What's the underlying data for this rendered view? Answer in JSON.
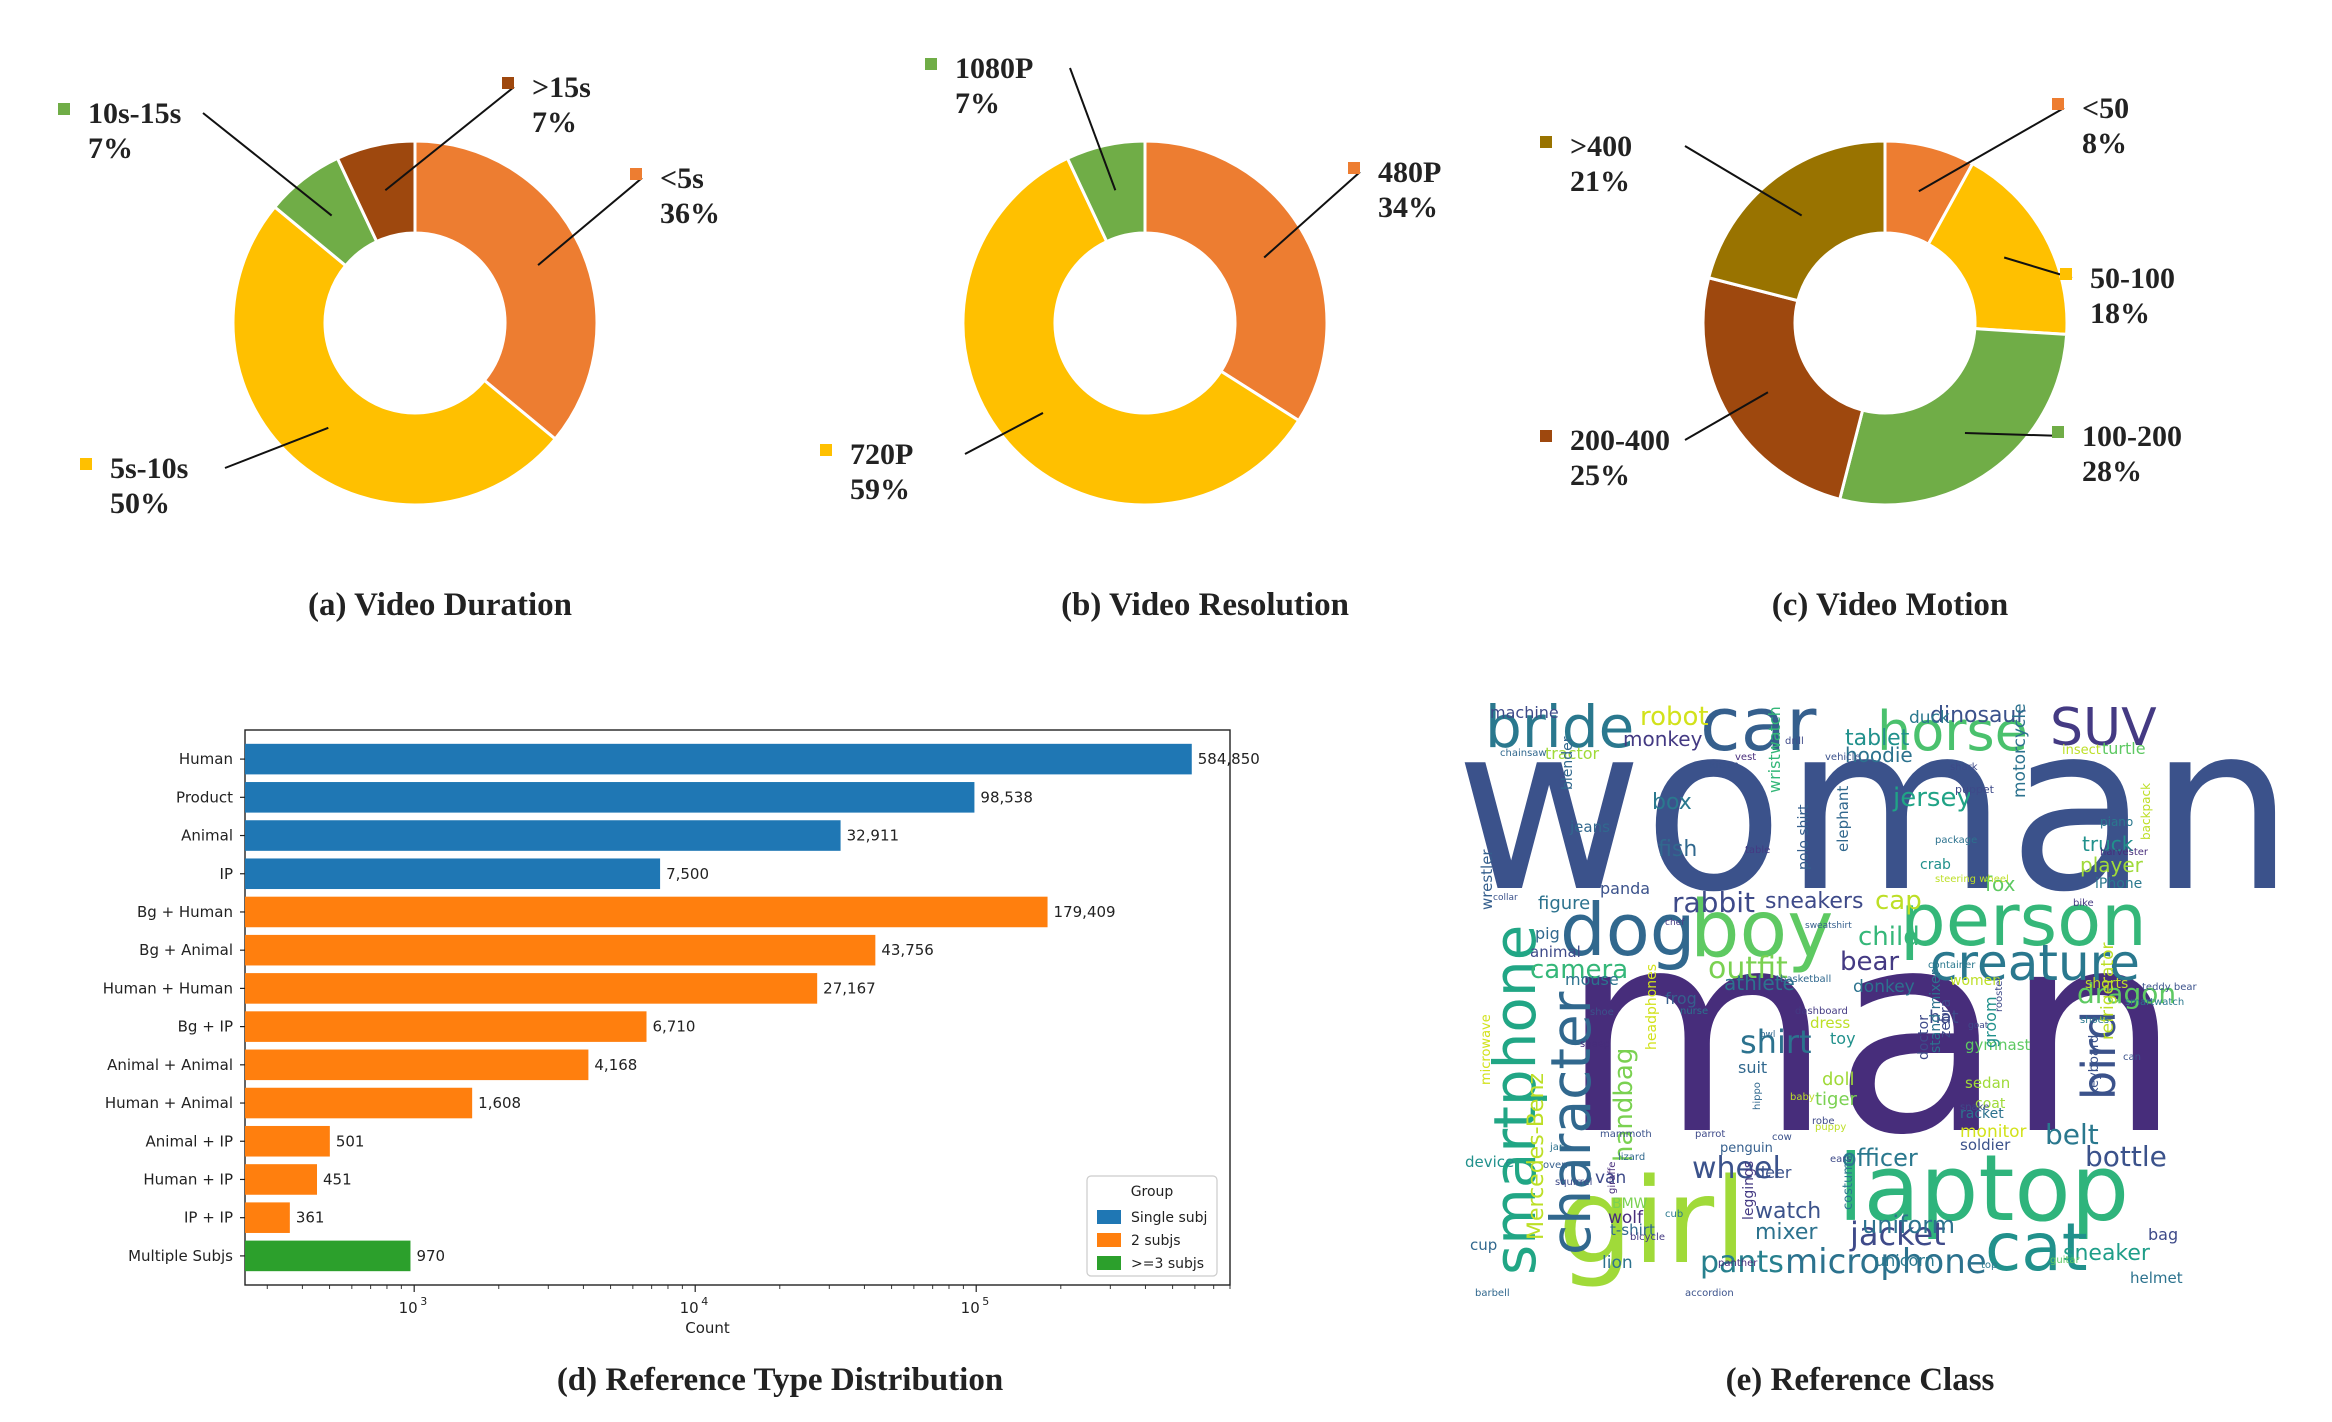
{
  "chart_data": [
    {
      "type": "pie",
      "title": "(a) Video Duration",
      "slices": [
        {
          "label": "<5s",
          "pct_label": "36%",
          "value": 36,
          "color": "#ED7D31"
        },
        {
          "label": "5s-10s",
          "pct_label": "50%",
          "value": 50,
          "color": "#FFC000"
        },
        {
          "label": "10s-15s",
          "pct_label": "7%",
          "value": 7,
          "color": "#70AD47"
        },
        {
          "label": ">15s",
          "pct_label": "7%",
          "value": 7,
          "color": "#9E480E"
        }
      ]
    },
    {
      "type": "pie",
      "title": "(b) Video Resolution",
      "slices": [
        {
          "label": "480P",
          "pct_label": "34%",
          "value": 34,
          "color": "#ED7D31"
        },
        {
          "label": "720P",
          "pct_label": "59%",
          "value": 59,
          "color": "#FFC000"
        },
        {
          "label": "1080P",
          "pct_label": "7%",
          "value": 7,
          "color": "#70AD47"
        }
      ]
    },
    {
      "type": "pie",
      "title": "(c) Video Motion",
      "slices": [
        {
          "label": "<50",
          "pct_label": "8%",
          "value": 8,
          "color": "#ED7D31"
        },
        {
          "label": "50-100",
          "pct_label": "18%",
          "value": 18,
          "color": "#FFC000"
        },
        {
          "label": "100-200",
          "pct_label": "28%",
          "value": 28,
          "color": "#70AD47"
        },
        {
          "label": "200-400",
          "pct_label": "25%",
          "value": 25,
          "color": "#9E480E"
        },
        {
          "label": ">400",
          "pct_label": "21%",
          "value": 21,
          "color": "#997300"
        }
      ]
    },
    {
      "type": "bar",
      "orientation": "horizontal",
      "title": "(d) Reference Type Distribution",
      "xlabel": "Count",
      "xscale": "log",
      "xlim": [
        250,
        800000
      ],
      "xticks": [
        {
          "value": 1000,
          "base": "10",
          "exp": "3"
        },
        {
          "value": 10000,
          "base": "10",
          "exp": "4"
        },
        {
          "value": 100000,
          "base": "10",
          "exp": "5"
        }
      ],
      "categories": [
        "Human",
        "Product",
        "Animal",
        "IP",
        "Bg + Human",
        "Bg + Animal",
        "Human + Human",
        "Bg + IP",
        "Animal + Animal",
        "Human + Animal",
        "Animal + IP",
        "Human + IP",
        "IP + IP",
        "Multiple Subjs"
      ],
      "values": [
        584850,
        98538,
        32911,
        7500,
        179409,
        43756,
        27167,
        6710,
        4168,
        1608,
        501,
        451,
        361,
        970
      ],
      "value_labels": [
        "584,850",
        "98,538",
        "32,911",
        "7,500",
        "179,409",
        "43,756",
        "27,167",
        "6,710",
        "4,168",
        "1,608",
        "501",
        "451",
        "361",
        "970"
      ],
      "groups": [
        0,
        0,
        0,
        0,
        1,
        1,
        1,
        1,
        1,
        1,
        1,
        1,
        1,
        2
      ],
      "legend": {
        "title": "Group",
        "placement": "lower-right",
        "entries": [
          {
            "name": "Single subj",
            "color": "#1F77B4"
          },
          {
            "name": "2 subjs",
            "color": "#FF7F0E"
          },
          {
            "name": ">=3 subjs",
            "color": "#2CA02C"
          }
        ]
      }
    },
    {
      "type": "wordcloud",
      "title": "(e) Reference Class",
      "words": [
        {
          "text": "woman",
          "color": "#3B528B",
          "rot": 0
        },
        {
          "text": "man",
          "color": "#472D7B",
          "rot": 0
        },
        {
          "text": "girl",
          "color": "#A0DA39",
          "rot": 0
        },
        {
          "text": "laptop",
          "color": "#2FB47C",
          "rot": 0
        },
        {
          "text": "boy",
          "color": "#5EC962",
          "rot": 0
        },
        {
          "text": "person",
          "color": "#35B779",
          "rot": 0
        },
        {
          "text": "dog",
          "color": "#31688E",
          "rot": 0
        },
        {
          "text": "car",
          "color": "#355F8D",
          "rot": 0
        },
        {
          "text": "horse",
          "color": "#4AC16D",
          "rot": 0
        },
        {
          "text": "SUV",
          "color": "#443A83",
          "rot": 0
        },
        {
          "text": "bride",
          "color": "#2A788E",
          "rot": 0
        },
        {
          "text": "cat",
          "color": "#21918C",
          "rot": 0
        },
        {
          "text": "smartphone",
          "color": "#21A685",
          "rot": -90
        },
        {
          "text": "character",
          "color": "#31688E",
          "rot": -90
        },
        {
          "text": "creature",
          "color": "#2A788E",
          "rot": 0
        },
        {
          "text": "bird",
          "color": "#3B528B",
          "rot": -90
        },
        {
          "text": "jacket",
          "color": "#3E4A89",
          "rot": 0
        },
        {
          "text": "microphone",
          "color": "#2C728E",
          "rot": 0
        },
        {
          "text": "pants",
          "color": "#27808E",
          "rot": 0
        },
        {
          "text": "wheel",
          "color": "#3B528B",
          "rot": 0
        },
        {
          "text": "shirt",
          "color": "#2C728E",
          "rot": 0
        },
        {
          "text": "outfit",
          "color": "#7AD151",
          "rot": 0
        },
        {
          "text": "dragon",
          "color": "#5EC962",
          "rot": 0
        },
        {
          "text": "rabbit",
          "color": "#3E4A89",
          "rot": 0
        },
        {
          "text": "camera",
          "color": "#35B779",
          "rot": 0
        },
        {
          "text": "bottle",
          "color": "#3B528B",
          "rot": 0
        },
        {
          "text": "belt",
          "color": "#2A788E",
          "rot": 0
        },
        {
          "text": "Mercedes-Benz",
          "color": "#BDDF26",
          "rot": -90
        },
        {
          "text": "handbag",
          "color": "#7AD151",
          "rot": -90
        },
        {
          "text": "officer",
          "color": "#2A788E",
          "rot": 0
        },
        {
          "text": "uniform",
          "color": "#2C728E",
          "rot": 0
        },
        {
          "text": "sneaker",
          "color": "#1F9E89",
          "rot": 0
        },
        {
          "text": "robot",
          "color": "#D2E21B",
          "rot": 0
        },
        {
          "text": "monkey",
          "color": "#443A83",
          "rot": 0
        },
        {
          "text": "dinosaur",
          "color": "#3B528B",
          "rot": 0
        },
        {
          "text": "tablet",
          "color": "#21918C",
          "rot": 0
        },
        {
          "text": "hoodie",
          "color": "#2C728E",
          "rot": 0
        },
        {
          "text": "jersey",
          "color": "#20A386",
          "rot": 0
        },
        {
          "text": "box",
          "color": "#2A788E",
          "rot": 0
        },
        {
          "text": "fish",
          "color": "#31688E",
          "rot": 0
        },
        {
          "text": "child",
          "color": "#35B779",
          "rot": 0
        },
        {
          "text": "bear",
          "color": "#443A83",
          "rot": 0
        },
        {
          "text": "cap",
          "color": "#BDDF26",
          "rot": 0
        },
        {
          "text": "sneakers",
          "color": "#3E4A89",
          "rot": 0
        },
        {
          "text": "athlete",
          "color": "#2C728E",
          "rot": 0
        },
        {
          "text": "watch",
          "color": "#3B528B",
          "rot": 0
        },
        {
          "text": "mixer",
          "color": "#2C728E",
          "rot": 0
        },
        {
          "text": "truck",
          "color": "#21918C",
          "rot": 0
        },
        {
          "text": "player",
          "color": "#A0DA39",
          "rot": 0
        },
        {
          "text": "fox",
          "color": "#5EC962",
          "rot": 0
        },
        {
          "text": "tiger",
          "color": "#7AD151",
          "rot": 0
        },
        {
          "text": "doll",
          "color": "#A0DA39",
          "rot": 0
        },
        {
          "text": "machine",
          "color": "#3E4A89",
          "rot": 0
        },
        {
          "text": "duck",
          "color": "#2A788E",
          "rot": 0
        },
        {
          "text": "tractor",
          "color": "#A0DA39",
          "rot": 0
        },
        {
          "text": "figure",
          "color": "#2C728E",
          "rot": 0
        },
        {
          "text": "pig",
          "color": "#31688E",
          "rot": 0
        },
        {
          "text": "panda",
          "color": "#3B528B",
          "rot": 0
        },
        {
          "text": "animal",
          "color": "#3E4A89",
          "rot": 0
        },
        {
          "text": "mouse",
          "color": "#2C728E",
          "rot": 0
        },
        {
          "text": "frog",
          "color": "#355F8D",
          "rot": 0
        },
        {
          "text": "donkey",
          "color": "#2C728E",
          "rot": 0
        },
        {
          "text": "hat",
          "color": "#3E4A89",
          "rot": 0
        },
        {
          "text": "toy",
          "color": "#21918C",
          "rot": 0
        },
        {
          "text": "dress",
          "color": "#BDDF26",
          "rot": 0
        },
        {
          "text": "suit",
          "color": "#31688E",
          "rot": 0
        },
        {
          "text": "gymnast",
          "color": "#5EC962",
          "rot": 0
        },
        {
          "text": "sedan",
          "color": "#A0DA39",
          "rot": 0
        },
        {
          "text": "coat",
          "color": "#A0DA39",
          "rot": 0
        },
        {
          "text": "racket",
          "color": "#2C728E",
          "rot": 0
        },
        {
          "text": "monitor",
          "color": "#D2E21B",
          "rot": 0
        },
        {
          "text": "soldier",
          "color": "#3B528B",
          "rot": 0
        },
        {
          "text": "van",
          "color": "#3E4A89",
          "rot": 0
        },
        {
          "text": "wolf",
          "color": "#472D7B",
          "rot": 0
        },
        {
          "text": "lion",
          "color": "#2C728E",
          "rot": 0
        },
        {
          "text": "cup",
          "color": "#31688E",
          "rot": 0
        },
        {
          "text": "device",
          "color": "#21918C",
          "rot": 0
        },
        {
          "text": "bag",
          "color": "#3E4A89",
          "rot": 0
        },
        {
          "text": "helmet",
          "color": "#2C728E",
          "rot": 0
        },
        {
          "text": "unicorn",
          "color": "#2A788E",
          "rot": 0
        },
        {
          "text": "deer",
          "color": "#3B528B",
          "rot": 0
        },
        {
          "text": "shorts",
          "color": "#BDDF26",
          "rot": 0
        },
        {
          "text": "women",
          "color": "#BDDF26",
          "rot": 0
        },
        {
          "text": "iPhone",
          "color": "#2A788E",
          "rot": 0
        },
        {
          "text": "t-shirt",
          "color": "#31688E",
          "rot": 0
        },
        {
          "text": "BMW",
          "color": "#7AD151",
          "rot": 0
        },
        {
          "text": "penguin",
          "color": "#355F8D",
          "rot": 0
        },
        {
          "text": "turtle",
          "color": "#5EC962",
          "rot": 0
        },
        {
          "text": "insect",
          "color": "#BDDF26",
          "rot": 0
        },
        {
          "text": "wristwatch",
          "color": "#35B779",
          "rot": -90
        },
        {
          "text": "polo shirt",
          "color": "#355F8D",
          "rot": -90
        },
        {
          "text": "elephant",
          "color": "#31688E",
          "rot": -90
        },
        {
          "text": "motorcycle",
          "color": "#2C728E",
          "rot": -90
        },
        {
          "text": "blender",
          "color": "#31688E",
          "rot": -90
        },
        {
          "text": "wrestler",
          "color": "#355F8D",
          "rot": -90
        },
        {
          "text": "doctor",
          "color": "#3E4A89",
          "rot": -90
        },
        {
          "text": "groom",
          "color": "#21918C",
          "rot": -90
        },
        {
          "text": "refrigerator",
          "color": "#BDDF26",
          "rot": -90
        },
        {
          "text": "headphones",
          "color": "#D2E21B",
          "rot": -90
        },
        {
          "text": "leggings",
          "color": "#443A83",
          "rot": -90
        },
        {
          "text": "costume",
          "color": "#2A788E",
          "rot": -90
        },
        {
          "text": "keyboard",
          "color": "#3B528B",
          "rot": -90
        },
        {
          "text": "backpack",
          "color": "#BDDF26",
          "rot": -90
        },
        {
          "text": "microwave",
          "color": "#D2E21B",
          "rot": -90
        },
        {
          "text": "stand mixer",
          "color": "#2C728E",
          "rot": -90
        },
        {
          "text": "jeans",
          "color": "#31688E",
          "rot": 0
        },
        {
          "text": "crab",
          "color": "#21918C",
          "rot": 0
        },
        {
          "text": "kitten",
          "color": "#3B528B",
          "rot": 0
        },
        {
          "text": "shark",
          "color": "#3E4A89",
          "rot": 0
        },
        {
          "text": "puppet",
          "color": "#3E4A89",
          "rot": 0
        },
        {
          "text": "piano",
          "color": "#2A788E",
          "rot": 0
        },
        {
          "text": "package",
          "color": "#2C728E",
          "rot": 0
        },
        {
          "text": "collar",
          "color": "#3B528B",
          "rot": 0
        },
        {
          "text": "chef",
          "color": "#443A83",
          "rot": 0
        },
        {
          "text": "sweatshirt",
          "color": "#355F8D",
          "rot": 0
        },
        {
          "text": "bike",
          "color": "#443A83",
          "rot": 0
        },
        {
          "text": "shoe",
          "color": "#3B528B",
          "rot": 0
        },
        {
          "text": "owl",
          "color": "#31688E",
          "rot": 0
        },
        {
          "text": "shoes",
          "color": "#2A788E",
          "rot": 0
        },
        {
          "text": "goat",
          "color": "#3E4A89",
          "rot": 0
        },
        {
          "text": "sheep",
          "color": "#472D7B",
          "rot": 0
        },
        {
          "text": "baby",
          "color": "#BDDF26",
          "rot": 0
        },
        {
          "text": "robe",
          "color": "#3E4A89",
          "rot": 0
        },
        {
          "text": "cub",
          "color": "#2A788E",
          "rot": 0
        },
        {
          "text": "bicycle",
          "color": "#443A83",
          "rot": 0
        },
        {
          "text": "parrot",
          "color": "#3E4A89",
          "rot": 0
        },
        {
          "text": "lizard",
          "color": "#31688E",
          "rot": 0
        },
        {
          "text": "jar",
          "color": "#2C728E",
          "rot": 0
        },
        {
          "text": "oven",
          "color": "#355F8D",
          "rot": 0
        },
        {
          "text": "squirrel",
          "color": "#3E4A89",
          "rot": 0
        },
        {
          "text": "accordion",
          "color": "#3B528B",
          "rot": 0
        },
        {
          "text": "barbell",
          "color": "#31688E",
          "rot": 0
        },
        {
          "text": "top",
          "color": "#2A788E",
          "rot": 0
        },
        {
          "text": "panther",
          "color": "#472D7B",
          "rot": 0
        },
        {
          "text": "ears",
          "color": "#3E4A89",
          "rot": 0
        },
        {
          "text": "puppy",
          "color": "#BDDF26",
          "rot": 0
        },
        {
          "text": "snake",
          "color": "#3E4A89",
          "rot": 0
        },
        {
          "text": "mammoth",
          "color": "#3B528B",
          "rot": 0
        },
        {
          "text": "nurse",
          "color": "#2C728E",
          "rot": 0
        },
        {
          "text": "basketball",
          "color": "#31688E",
          "rot": 0
        },
        {
          "text": "container",
          "color": "#2A788E",
          "rot": 0
        },
        {
          "text": "dashboard",
          "color": "#443A83",
          "rot": 0
        },
        {
          "text": "vest",
          "color": "#472D7B",
          "rot": 0
        },
        {
          "text": "drill",
          "color": "#3E4A89",
          "rot": 0
        },
        {
          "text": "vehicle",
          "color": "#3B528B",
          "rot": 0
        },
        {
          "text": "table",
          "color": "#443A83",
          "rot": 0
        },
        {
          "text": "harvester",
          "color": "#472D7B",
          "rot": 0
        },
        {
          "text": "chainsaw",
          "color": "#31688E",
          "rot": 0
        },
        {
          "text": "steering wheel",
          "color": "#BDDF26",
          "rot": 0
        },
        {
          "text": "teddy bear",
          "color": "#3B528B",
          "rot": 0
        },
        {
          "text": "rooster",
          "color": "#3E4A89",
          "rot": -90
        },
        {
          "text": "smartwatch",
          "color": "#2A788E",
          "rot": 0
        },
        {
          "text": "can",
          "color": "#3B528B",
          "rot": 0
        },
        {
          "text": "giraffe",
          "color": "#472D7B",
          "rot": -90
        },
        {
          "text": "cow",
          "color": "#3B528B",
          "rot": 0
        },
        {
          "text": "hippo",
          "color": "#31688E",
          "rot": -90
        },
        {
          "text": "zebra",
          "color": "#3E4A89",
          "rot": -90
        },
        {
          "text": "guitar",
          "color": "#5EC962",
          "rot": 0
        },
        {
          "text": "sneaker",
          "color": "#2A788E",
          "rot": 0
        }
      ]
    }
  ]
}
